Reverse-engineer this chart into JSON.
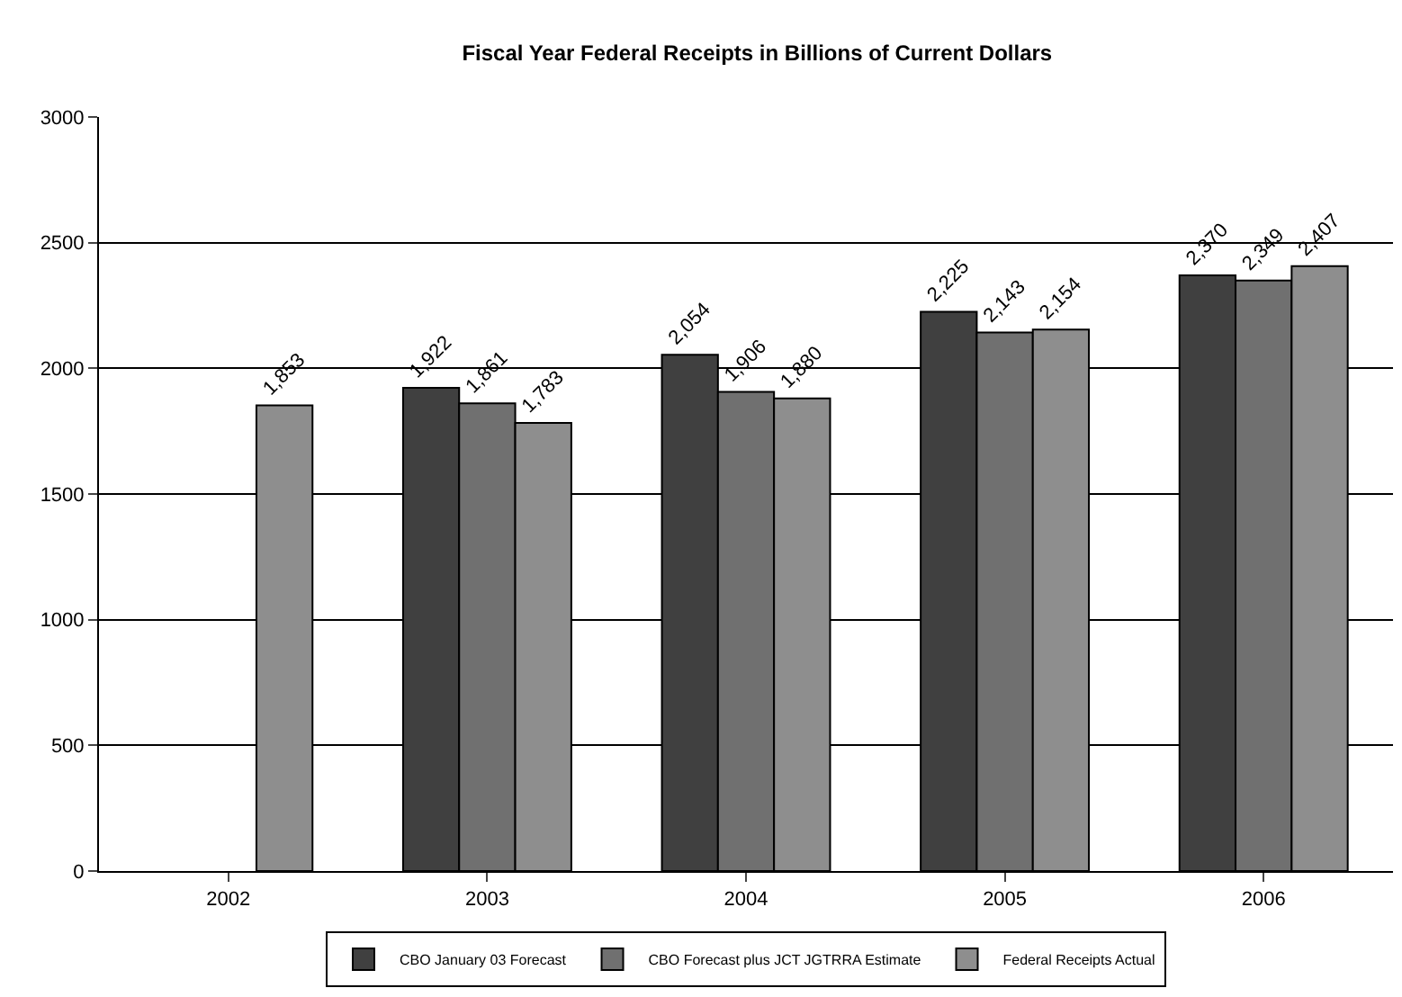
{
  "chart_data": {
    "type": "bar",
    "title": "Fiscal Year Federal Receipts in Billions of Current Dollars",
    "categories": [
      "2002",
      "2003",
      "2004",
      "2005",
      "2006"
    ],
    "series": [
      {
        "name": "CBO January 03 Forecast",
        "color": "#404040",
        "values": [
          null,
          1922,
          2054,
          2225,
          2370
        ],
        "value_labels": [
          null,
          "1,922",
          "2,054",
          "2,225",
          "2,370"
        ]
      },
      {
        "name": "CBO Forecast plus JCT JGTRRA Estimate",
        "color": "#707070",
        "values": [
          null,
          1861,
          1906,
          2143,
          2349
        ],
        "value_labels": [
          null,
          "1,861",
          "1,906",
          "2,143",
          "2,349"
        ]
      },
      {
        "name": "Federal Receipts Actual",
        "color": "#8e8e8e",
        "values": [
          1853,
          1783,
          1880,
          2154,
          2407
        ],
        "value_labels": [
          "1,853",
          "1,783",
          "1,880",
          "2,154",
          "2,407"
        ]
      }
    ],
    "ylim": [
      0,
      3000
    ],
    "yticks": [
      0,
      500,
      1000,
      1500,
      2000,
      2500,
      3000
    ],
    "grid": "y",
    "legend": "bottom"
  }
}
